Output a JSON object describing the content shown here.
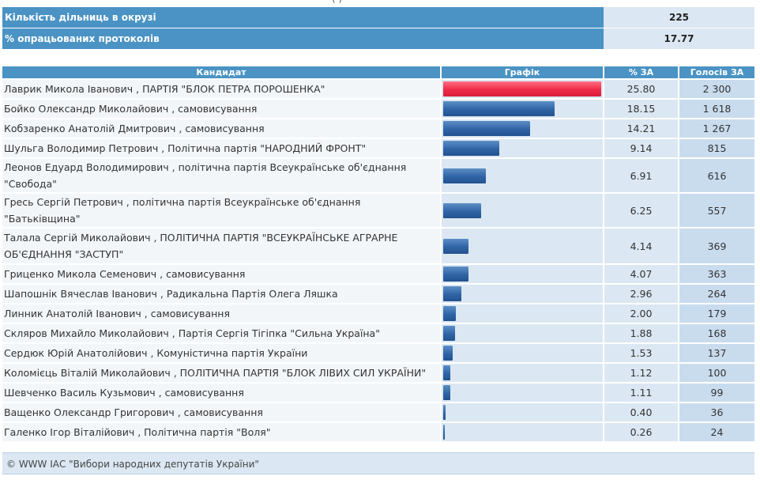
{
  "header_fragment": "(                  )",
  "summary": [
    {
      "label": "Кількість дільниць в окрузі",
      "value": "225"
    },
    {
      "label": "% опрацьованих протоколів",
      "value": "17.77"
    }
  ],
  "columns": {
    "candidate": "Кандидат",
    "graph": "Графік",
    "pct": "% ЗА",
    "votes": "Голосів ЗА"
  },
  "candidates": [
    {
      "name": "Лаврик Микола Іванович",
      "party": "ПАРТІЯ \"БЛОК ПЕТРА ПОРОШЕНКА\"",
      "pct": 25.8,
      "pct_text": "25.80",
      "votes": "2 300"
    },
    {
      "name": "Бойко Олександр Миколайович",
      "party": "самовисування",
      "pct": 18.15,
      "pct_text": "18.15",
      "votes": "1 618"
    },
    {
      "name": "Кобзаренко Анатолій Дмитрович",
      "party": "самовисування",
      "pct": 14.21,
      "pct_text": "14.21",
      "votes": "1 267"
    },
    {
      "name": "Шульга Володимир Петрович",
      "party": "Політична партія \"НАРОДНИЙ ФРОНТ\"",
      "pct": 9.14,
      "pct_text": "9.14",
      "votes": "815"
    },
    {
      "name": "Леонов Едуард Володимирович",
      "party": "політична партія Всеукраїнське об'єднання \"Свобода\"",
      "pct": 6.91,
      "pct_text": "6.91",
      "votes": "616"
    },
    {
      "name": "Гресь Сергій Петрович",
      "party": "політична партія Всеукраїнське об'єднання \"Батьківщина\"",
      "pct": 6.25,
      "pct_text": "6.25",
      "votes": "557"
    },
    {
      "name": "Талала Сергій Миколайович",
      "party": "ПОЛІТИЧНА ПАРТІЯ \"ВСЕУКРАЇНСЬКЕ АГРАРНЕ ОБ'ЄДНАННЯ \"ЗАСТУП\"",
      "pct": 4.14,
      "pct_text": "4.14",
      "votes": "369"
    },
    {
      "name": "Гриценко Микола Семенович",
      "party": "самовисування",
      "pct": 4.07,
      "pct_text": "4.07",
      "votes": "363"
    },
    {
      "name": "Шапошнік Вячеслав Іванович",
      "party": "Радикальна Партія Олега Ляшка",
      "pct": 2.96,
      "pct_text": "2.96",
      "votes": "264"
    },
    {
      "name": "Линник Анатолій Іванович",
      "party": "самовисування",
      "pct": 2.0,
      "pct_text": "2.00",
      "votes": "179"
    },
    {
      "name": "Скляров Михайло Миколайович",
      "party": "Партія Сергія Тігіпка \"Сильна Україна\"",
      "pct": 1.88,
      "pct_text": "1.88",
      "votes": "168"
    },
    {
      "name": "Сердюк Юрій Анатолійович",
      "party": "Комуністична партія України",
      "pct": 1.53,
      "pct_text": "1.53",
      "votes": "137"
    },
    {
      "name": "Коломієць Віталій Миколайович",
      "party": "ПОЛІТИЧНА ПАРТІЯ \"БЛОК ЛІВИХ СИЛ УКРАЇНИ\"",
      "pct": 1.12,
      "pct_text": "1.12",
      "votes": "100"
    },
    {
      "name": "Шевченко Василь Кузьмович",
      "party": "самовисування",
      "pct": 1.11,
      "pct_text": "1.11",
      "votes": "99"
    },
    {
      "name": "Ващенко Олександр Григорович",
      "party": "самовисування",
      "pct": 0.4,
      "pct_text": "0.40",
      "votes": "36"
    },
    {
      "name": "Галенко Ігор Віталійович",
      "party": "Політична партія \"Воля\"",
      "pct": 0.26,
      "pct_text": "0.26",
      "votes": "24"
    }
  ],
  "colors": {
    "header": "#4a93c4",
    "leader_bar": "#ef2a47",
    "bar": "#2f64a5"
  },
  "footer": "© WWW ІАС \"Вибори народних депутатів України\""
}
